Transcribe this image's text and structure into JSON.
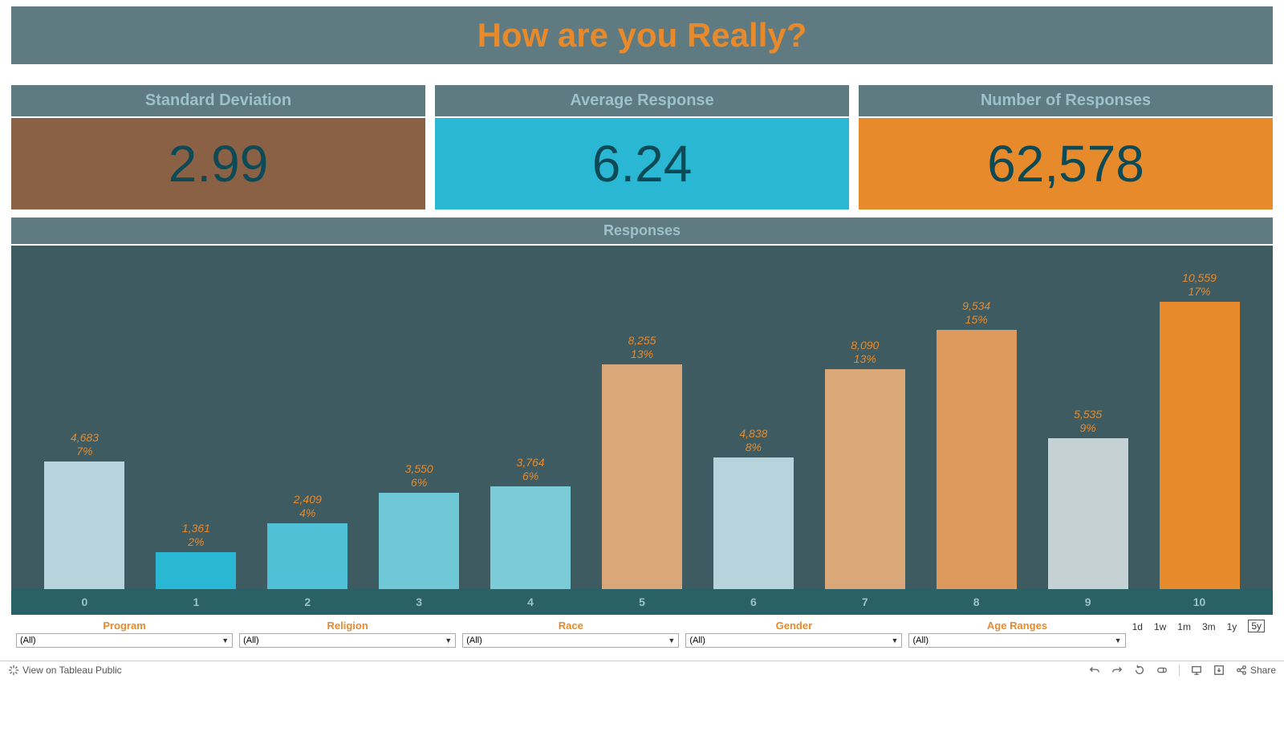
{
  "title": "How are you Really?",
  "title_color": "#e78a2b",
  "header_bg": "#5f7a80",
  "header_text_color": "#9cc2c9",
  "kpis": [
    {
      "label": "Standard Deviation",
      "value": "2.99",
      "bg": "#8b6146"
    },
    {
      "label": "Average Response",
      "value": "6.24",
      "bg": "#29b7d3"
    },
    {
      "label": "Number of Responses",
      "value": "62,578",
      "bg": "#e78a2b"
    }
  ],
  "chart": {
    "type": "bar",
    "title": "Responses",
    "background_color": "#3f5b62",
    "axis_bg": "#2a6166",
    "label_color": "#e78a2b",
    "tick_color": "#9cc2c9",
    "max_value": 10559,
    "categories": [
      "0",
      "1",
      "2",
      "3",
      "4",
      "5",
      "6",
      "7",
      "8",
      "9",
      "10"
    ],
    "bars": [
      {
        "count": "4,683",
        "pct": "7%",
        "value": 4683,
        "color": "#b7d3db"
      },
      {
        "count": "1,361",
        "pct": "2%",
        "value": 1361,
        "color": "#29b7d3"
      },
      {
        "count": "2,409",
        "pct": "4%",
        "value": 2409,
        "color": "#4fc0d6"
      },
      {
        "count": "3,550",
        "pct": "6%",
        "value": 3550,
        "color": "#6fc8d6"
      },
      {
        "count": "3,764",
        "pct": "6%",
        "value": 3764,
        "color": "#7bccd6"
      },
      {
        "count": "8,255",
        "pct": "13%",
        "value": 8255,
        "color": "#d9a778"
      },
      {
        "count": "4,838",
        "pct": "8%",
        "value": 4838,
        "color": "#b7d3db"
      },
      {
        "count": "8,090",
        "pct": "13%",
        "value": 8090,
        "color": "#d9a778"
      },
      {
        "count": "9,534",
        "pct": "15%",
        "value": 9534,
        "color": "#de995c"
      },
      {
        "count": "5,535",
        "pct": "9%",
        "value": 5535,
        "color": "#c4d2d6"
      },
      {
        "count": "10,559",
        "pct": "17%",
        "value": 10559,
        "color": "#e78a2b"
      }
    ]
  },
  "filters": [
    {
      "label": "Program",
      "value": "(All)"
    },
    {
      "label": "Religion",
      "value": "(All)"
    },
    {
      "label": "Race",
      "value": "(All)"
    },
    {
      "label": "Gender",
      "value": "(All)"
    },
    {
      "label": "Age Ranges",
      "value": "(All)"
    }
  ],
  "time_range": [
    "1d",
    "1w",
    "1m",
    "3m",
    "1y",
    "5y"
  ],
  "time_range_active": "5y",
  "footer": {
    "view_label": "View on Tableau Public",
    "share_label": "Share"
  }
}
